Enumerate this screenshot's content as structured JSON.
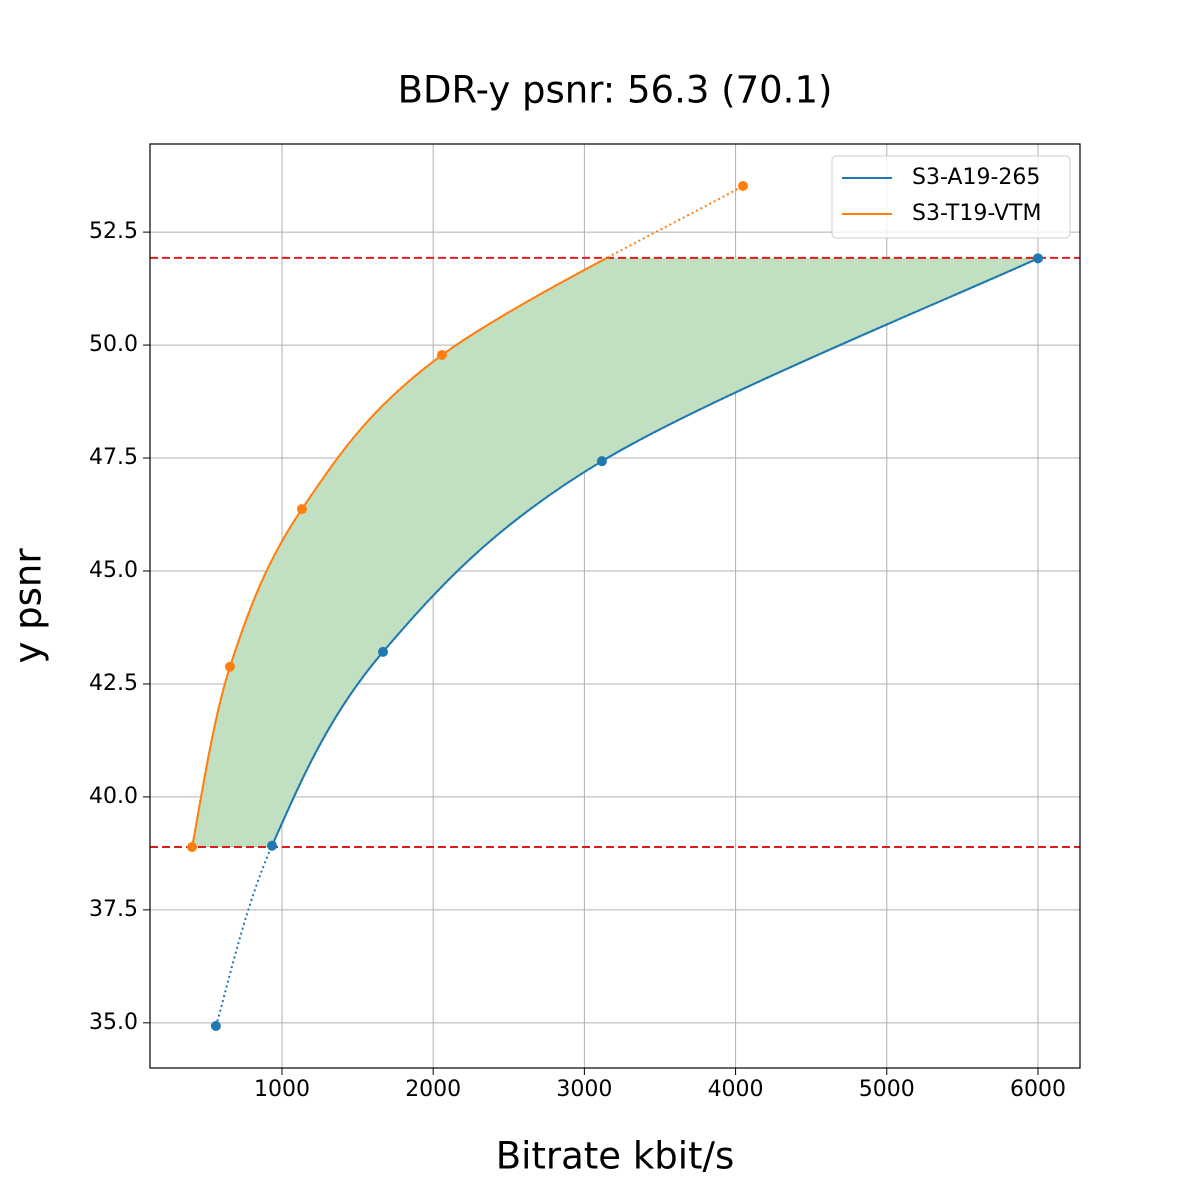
{
  "chart_data": {
    "type": "line",
    "title": "BDR-y psnr: 56.3 (70.1)",
    "x_label": "Bitrate kbit/s",
    "y_label": "y psnr",
    "series": [
      {
        "name": "S3-A19-265",
        "color": "#1f77b4",
        "x": [
          563,
          934,
          1668,
          3116,
          6000
        ],
        "values": [
          34.93,
          38.92,
          43.21,
          47.43,
          51.92
        ]
      },
      {
        "name": "S3-T19-VTM",
        "color": "#ff7f0e",
        "x": [
          405,
          656,
          1132,
          2058,
          4049
        ],
        "values": [
          38.89,
          42.88,
          46.37,
          49.78,
          53.52
        ]
      }
    ],
    "reference_lines": [
      38.89,
      51.93
    ],
    "reference_color": "#e31a1c",
    "fill_color": "#c1dfc1",
    "xlim": [
      127,
      6278
    ],
    "ylim": [
      34.0,
      54.45
    ],
    "xticks": [
      1000,
      2000,
      3000,
      4000,
      5000,
      6000
    ],
    "yticks": [
      {
        "value": 35,
        "label": "35.0"
      },
      37.5,
      {
        "value": 40,
        "label": "40.0"
      },
      42.5,
      {
        "value": 45,
        "label": "45.0"
      },
      47.5,
      {
        "value": 50,
        "label": "50.0"
      },
      52.5
    ],
    "grid": true,
    "legend": "upper right"
  }
}
